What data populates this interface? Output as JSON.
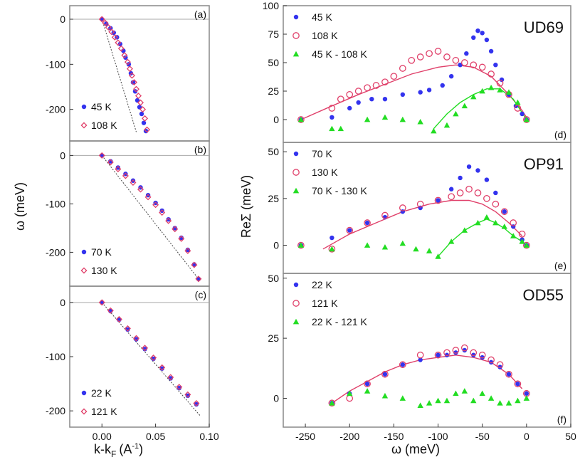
{
  "chart_data": [
    {
      "id": "a",
      "type": "scatter",
      "panel_label": "(a)",
      "xlim": [
        -0.03,
        0.1
      ],
      "ylim": [
        -270,
        30
      ],
      "yticks": [
        0,
        -100,
        -200
      ],
      "xticks": [],
      "xticklabels": [],
      "ylabel": "",
      "xlabel": "",
      "series": [
        {
          "name": "45 K",
          "marker": "dot",
          "color": "#3333ee",
          "x": [
            0.0,
            0.004,
            0.008,
            0.011,
            0.014,
            0.017,
            0.02,
            0.022,
            0.025,
            0.027,
            0.029,
            0.031,
            0.033,
            0.035,
            0.037,
            0.039,
            0.041
          ],
          "y": [
            0,
            -10,
            -20,
            -30,
            -40,
            -55,
            -70,
            -85,
            -100,
            -120,
            -140,
            -160,
            -180,
            -195,
            -210,
            -230,
            -248
          ]
        },
        {
          "name": "108 K",
          "marker": "diamond",
          "color": "#e0406a",
          "x": [
            0.0,
            0.003,
            0.006,
            0.009,
            0.012,
            0.015,
            0.018,
            0.021,
            0.024,
            0.026,
            0.028,
            0.03,
            0.032,
            0.034,
            0.036,
            0.038,
            0.04,
            0.042
          ],
          "y": [
            0,
            -8,
            -18,
            -28,
            -40,
            -52,
            -65,
            -80,
            -95,
            -110,
            -125,
            -140,
            -155,
            -170,
            -185,
            -200,
            -220,
            -245
          ]
        }
      ],
      "reference_line": {
        "x": [
          0.0,
          0.032
        ],
        "y": [
          0,
          -250
        ]
      },
      "zero_line": true
    },
    {
      "id": "b",
      "type": "scatter",
      "panel_label": "(b)",
      "xlim": [
        -0.03,
        0.1
      ],
      "ylim": [
        -270,
        30
      ],
      "yticks": [
        0,
        -100,
        -200
      ],
      "xticks": [],
      "xticklabels": [],
      "series": [
        {
          "name": "70 K",
          "marker": "dot",
          "color": "#3333ee",
          "x": [
            0.0,
            0.008,
            0.015,
            0.022,
            0.029,
            0.036,
            0.043,
            0.05,
            0.056,
            0.062,
            0.068,
            0.074,
            0.08,
            0.086,
            0.09
          ],
          "y": [
            0,
            -12,
            -25,
            -38,
            -52,
            -66,
            -82,
            -98,
            -114,
            -132,
            -150,
            -170,
            -195,
            -225,
            -255
          ]
        },
        {
          "name": "130 K",
          "marker": "diamond",
          "color": "#e0406a",
          "x": [
            0.0,
            0.008,
            0.015,
            0.022,
            0.029,
            0.036,
            0.043,
            0.05,
            0.056,
            0.062,
            0.068,
            0.074,
            0.08,
            0.086,
            0.09
          ],
          "y": [
            0,
            -14,
            -28,
            -42,
            -56,
            -70,
            -86,
            -102,
            -118,
            -135,
            -152,
            -172,
            -197,
            -226,
            -255
          ]
        }
      ],
      "reference_line": {
        "x": [
          0.0,
          0.09
        ],
        "y": [
          0,
          -255
        ]
      },
      "zero_line": true
    },
    {
      "id": "c",
      "type": "scatter",
      "panel_label": "(c)",
      "xlim": [
        -0.03,
        0.1
      ],
      "ylim": [
        -230,
        30
      ],
      "yticks": [
        0,
        -100,
        -200
      ],
      "xticks": [
        0.0,
        0.05,
        0.1
      ],
      "xticklabels": [
        "0.00",
        "0.05",
        "0.10"
      ],
      "series": [
        {
          "name": "22 K",
          "marker": "dot",
          "color": "#3333ee",
          "x": [
            0.0,
            0.008,
            0.016,
            0.024,
            0.032,
            0.04,
            0.048,
            0.056,
            0.064,
            0.072,
            0.08,
            0.088
          ],
          "y": [
            0,
            -16,
            -32,
            -50,
            -68,
            -86,
            -104,
            -122,
            -140,
            -158,
            -172,
            -188
          ]
        },
        {
          "name": "121 K",
          "marker": "diamond",
          "color": "#e0406a",
          "x": [
            0.0,
            0.008,
            0.016,
            0.024,
            0.032,
            0.04,
            0.048,
            0.056,
            0.064,
            0.072,
            0.08,
            0.088
          ],
          "y": [
            0,
            -15,
            -31,
            -48,
            -66,
            -84,
            -102,
            -120,
            -138,
            -156,
            -170,
            -186
          ]
        }
      ],
      "reference_line": {
        "x": [
          0.0,
          0.092
        ],
        "y": [
          0,
          -210
        ]
      },
      "zero_line": true
    },
    {
      "id": "d",
      "type": "scatter",
      "panel_label": "(d)",
      "title": "UD69",
      "xlim": [
        -275,
        50
      ],
      "ylim": [
        -20,
        100
      ],
      "yticks": [
        0,
        25,
        50,
        75,
        100
      ],
      "xticks": [],
      "xticklabels": [],
      "series": [
        {
          "name": "45 K",
          "marker": "dot",
          "color": "#3333ee",
          "x": [
            -255,
            -220,
            -200,
            -190,
            -175,
            -160,
            -140,
            -120,
            -110,
            -95,
            -85,
            -75,
            -68,
            -60,
            -55,
            -50,
            -45,
            -40,
            -35,
            -28,
            -20,
            -12,
            -5,
            0
          ],
          "y": [
            0,
            2,
            10,
            15,
            18,
            18,
            22,
            24,
            26,
            30,
            38,
            48,
            58,
            72,
            78,
            76,
            70,
            60,
            48,
            35,
            22,
            12,
            5,
            0
          ]
        },
        {
          "name": "108 K",
          "marker": "circle",
          "color": "#e0406a",
          "x": [
            -255,
            -220,
            -210,
            -200,
            -190,
            -180,
            -170,
            -160,
            -150,
            -140,
            -130,
            -120,
            -110,
            -100,
            -90,
            -80,
            -70,
            -60,
            -50,
            -40,
            -30,
            -20,
            -10,
            0
          ],
          "y": [
            0,
            10,
            18,
            22,
            25,
            28,
            30,
            33,
            38,
            45,
            52,
            55,
            58,
            60,
            55,
            52,
            50,
            48,
            46,
            40,
            32,
            22,
            10,
            0
          ]
        },
        {
          "name": "45 K - 108 K",
          "marker": "triangle",
          "color": "#22dd22",
          "x": [
            -255,
            -220,
            -210,
            -180,
            -160,
            -140,
            -120,
            -105,
            -90,
            -80,
            -70,
            -60,
            -50,
            -40,
            -30,
            -20,
            -10,
            0
          ],
          "y": [
            0,
            -8,
            -8,
            0,
            2,
            0,
            -2,
            -10,
            -5,
            5,
            12,
            20,
            25,
            28,
            26,
            24,
            15,
            0
          ]
        }
      ],
      "curves": [
        {
          "color": "#e0406a",
          "x": [
            -255,
            -220,
            -190,
            -160,
            -130,
            -100,
            -80,
            -60,
            -40,
            -20,
            -5,
            0
          ],
          "y": [
            0,
            12,
            22,
            31,
            40,
            46,
            48,
            46,
            38,
            22,
            8,
            2
          ]
        },
        {
          "color": "#22dd22",
          "x": [
            -105,
            -90,
            -75,
            -60,
            -45,
            -30,
            -15,
            -5,
            0
          ],
          "y": [
            -8,
            5,
            15,
            22,
            27,
            27,
            18,
            6,
            0
          ]
        }
      ],
      "zero_line": false
    },
    {
      "id": "e",
      "type": "scatter",
      "panel_label": "(e)",
      "title": "OP91",
      "xlim": [
        -275,
        50
      ],
      "ylim": [
        -15,
        55
      ],
      "yticks": [
        0,
        25,
        50
      ],
      "xticks": [],
      "xticklabels": [],
      "series": [
        {
          "name": "70 K",
          "marker": "dot",
          "color": "#3333ee",
          "x": [
            -255,
            -220,
            -200,
            -180,
            -160,
            -140,
            -120,
            -100,
            -85,
            -75,
            -65,
            -55,
            -45,
            -35,
            -25,
            -15,
            -5,
            0
          ],
          "y": [
            0,
            4,
            8,
            12,
            15,
            18,
            20,
            24,
            30,
            36,
            42,
            40,
            35,
            28,
            18,
            10,
            3,
            0
          ]
        },
        {
          "name": "130 K",
          "marker": "circle",
          "color": "#e0406a",
          "x": [
            -255,
            -220,
            -200,
            -180,
            -160,
            -140,
            -120,
            -100,
            -85,
            -75,
            -65,
            -55,
            -45,
            -35,
            -25,
            -15,
            -5,
            0
          ],
          "y": [
            0,
            -2,
            8,
            12,
            16,
            20,
            22,
            24,
            26,
            28,
            30,
            28,
            25,
            22,
            18,
            12,
            6,
            0
          ]
        },
        {
          "name": "70 K - 130 K",
          "marker": "triangle",
          "color": "#22dd22",
          "x": [
            -255,
            -220,
            -180,
            -160,
            -140,
            -125,
            -110,
            -100,
            -85,
            -70,
            -55,
            -45,
            -35,
            -25,
            -15,
            -5,
            0
          ],
          "y": [
            0,
            -2,
            0,
            -1,
            1,
            -2,
            -3,
            -6,
            2,
            8,
            12,
            15,
            12,
            10,
            5,
            2,
            0
          ]
        }
      ],
      "curves": [
        {
          "color": "#e0406a",
          "x": [
            -230,
            -200,
            -170,
            -140,
            -110,
            -85,
            -65,
            -50,
            -35,
            -20,
            -5
          ],
          "y": [
            -2,
            6,
            12,
            18,
            22,
            24,
            24,
            22,
            18,
            12,
            5
          ]
        },
        {
          "color": "#22dd22",
          "x": [
            -100,
            -85,
            -70,
            -55,
            -45,
            -35,
            -25,
            -15,
            -5,
            0
          ],
          "y": [
            -6,
            2,
            8,
            12,
            14,
            12,
            9,
            5,
            2,
            0
          ]
        }
      ],
      "zero_line": false
    },
    {
      "id": "f",
      "type": "scatter",
      "panel_label": "(f)",
      "title": "OD55",
      "xlim": [
        -275,
        50
      ],
      "ylim": [
        -12,
        52
      ],
      "yticks": [
        0,
        25,
        50
      ],
      "xticks": [
        -250,
        -200,
        -150,
        -100,
        -50,
        0,
        50
      ],
      "xticklabels": [
        "-250",
        "-200",
        "-150",
        "-100",
        "-50",
        "0",
        "50"
      ],
      "series": [
        {
          "name": "22 K",
          "marker": "dot",
          "color": "#3333ee",
          "x": [
            -220,
            -200,
            -180,
            -160,
            -140,
            -120,
            -100,
            -90,
            -80,
            -70,
            -60,
            -50,
            -40,
            -30,
            -20,
            -10,
            0
          ],
          "y": [
            -2,
            2,
            6,
            10,
            14,
            16,
            18,
            18,
            19,
            20,
            18,
            17,
            15,
            13,
            10,
            6,
            2
          ]
        },
        {
          "name": "121 K",
          "marker": "circle",
          "color": "#e0406a",
          "x": [
            -220,
            -200,
            -180,
            -160,
            -140,
            -120,
            -100,
            -90,
            -80,
            -70,
            -60,
            -50,
            -40,
            -30,
            -20,
            -10,
            0
          ],
          "y": [
            -2,
            0,
            6,
            10,
            14,
            18,
            18,
            19,
            20,
            21,
            19,
            18,
            16,
            14,
            10,
            6,
            2
          ]
        },
        {
          "name": "22 K - 121 K",
          "marker": "triangle",
          "color": "#22dd22",
          "x": [
            -220,
            -200,
            -180,
            -160,
            -140,
            -120,
            -110,
            -100,
            -90,
            -80,
            -70,
            -60,
            -50,
            -40,
            -30,
            -20,
            -10,
            0
          ],
          "y": [
            -2,
            2,
            3,
            1,
            0,
            -3,
            -2,
            -1,
            -1,
            2,
            3,
            -1,
            2,
            0,
            -2,
            -2,
            -1,
            0
          ]
        }
      ],
      "curves": [
        {
          "color": "#e0406a",
          "x": [
            -220,
            -200,
            -180,
            -160,
            -140,
            -120,
            -100,
            -80,
            -60,
            -40,
            -20,
            -5
          ],
          "y": [
            -2,
            3,
            7,
            11,
            14,
            16,
            17,
            18,
            17,
            15,
            10,
            4
          ]
        }
      ],
      "zero_line": false
    }
  ],
  "axes": {
    "left_ylabel": "ω (meV)",
    "left_xlabel": "k-k",
    "left_xlabel_sub": "F",
    "left_xlabel_unit": "(A",
    "left_xlabel_sup": "-1",
    "left_xlabel_close": ")",
    "right_ylabel": "ReΣ (meV)",
    "right_xlabel": "ω (meV)"
  }
}
